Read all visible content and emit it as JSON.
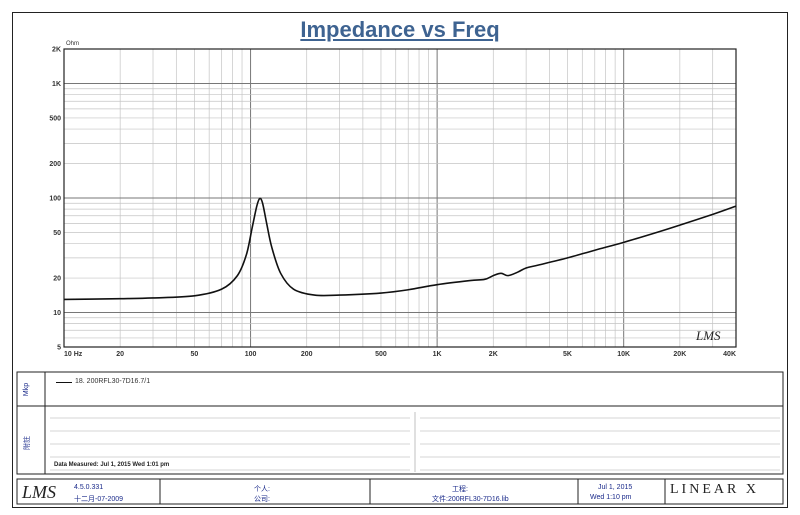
{
  "chart_data": {
    "type": "line",
    "title": "Impedance vs Freq",
    "ylabel": "Ohm",
    "xscale": "log",
    "yscale": "log",
    "xlim": [
      10,
      40000
    ],
    "ylim": [
      5,
      2000
    ],
    "x_tick_labels": [
      "10 Hz",
      "20",
      "50",
      "100",
      "200",
      "500",
      "1K",
      "2K",
      "5K",
      "10K",
      "20K",
      "40K"
    ],
    "x_tick_values": [
      10,
      20,
      50,
      100,
      200,
      500,
      1000,
      2000,
      5000,
      10000,
      20000,
      40000
    ],
    "y_tick_labels": [
      "2K",
      "1K",
      "500",
      "200",
      "100",
      "50",
      "20",
      "10",
      "5"
    ],
    "y_tick_values": [
      2000,
      1000,
      500,
      200,
      100,
      50,
      20,
      10,
      5
    ],
    "grid": true,
    "series": [
      {
        "name": "18. 200RFL30-7D16.7/1",
        "color": "#111111",
        "x": [
          10,
          20,
          30,
          50,
          70,
          85,
          95,
          102,
          108,
          112,
          116,
          122,
          130,
          145,
          170,
          220,
          300,
          500,
          700,
          1000,
          1500,
          1800,
          2000,
          2200,
          2400,
          2700,
          3000,
          3500,
          5000,
          7000,
          10000,
          15000,
          20000,
          30000,
          40000
        ],
        "y": [
          13,
          13.2,
          13.4,
          14,
          16,
          21,
          32,
          55,
          85,
          99,
          90,
          60,
          37,
          22,
          16,
          14.2,
          14.2,
          14.8,
          15.8,
          17.5,
          19,
          19.5,
          21,
          22,
          21,
          22.5,
          24.5,
          26,
          30,
          35,
          41,
          50,
          58,
          72,
          85
        ]
      }
    ],
    "annotation": "LMS"
  },
  "side_panels": {
    "top_label": "Mkp",
    "bottom_label": "附註"
  },
  "legend_entry": "18. 200RFL30-7D16.7/1",
  "date_measured": "Data Measured: Jul 1, 2015 Wed 1:01 pm",
  "footer": {
    "logo": "LMS",
    "version": "4.5.0.331",
    "build_date": "十二月-07-2009",
    "user_label": "个人:",
    "company_label": "公司:",
    "project_label": "工程:",
    "file_label": "文件:200RFL30-7D16.lib",
    "print_date": "Jul 1, 2015",
    "print_time": "Wed 1:10 pm",
    "brand": "LINEAR X"
  }
}
